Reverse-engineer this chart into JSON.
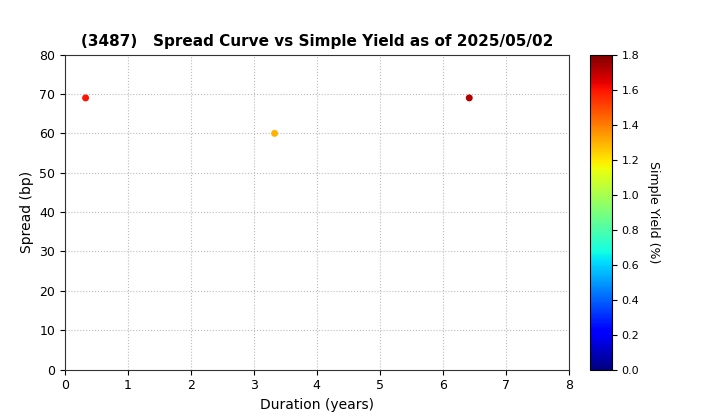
{
  "title": "(3487)   Spread Curve vs Simple Yield as of 2025/05/02",
  "xlabel": "Duration (years)",
  "ylabel": "Spread (bp)",
  "xlim": [
    0,
    8
  ],
  "ylim": [
    0,
    80
  ],
  "xticks": [
    0,
    1,
    2,
    3,
    4,
    5,
    6,
    7,
    8
  ],
  "yticks": [
    0,
    10,
    20,
    30,
    40,
    50,
    60,
    70,
    80
  ],
  "colorbar_label": "Simple Yield (%)",
  "colorbar_vmin": 0.0,
  "colorbar_vmax": 1.8,
  "colorbar_ticks": [
    0.0,
    0.2,
    0.4,
    0.6,
    0.8,
    1.0,
    1.2,
    1.4,
    1.6,
    1.8
  ],
  "points": [
    {
      "duration": 0.33,
      "spread": 69,
      "simple_yield": 1.6
    },
    {
      "duration": 3.33,
      "spread": 60,
      "simple_yield": 1.3
    },
    {
      "duration": 6.42,
      "spread": 69,
      "simple_yield": 1.72
    }
  ],
  "marker_size": 25,
  "background_color": "#ffffff",
  "grid_color": "#bbbbbb",
  "title_fontsize": 11,
  "axis_fontsize": 10,
  "tick_fontsize": 9,
  "cbar_tick_fontsize": 8
}
